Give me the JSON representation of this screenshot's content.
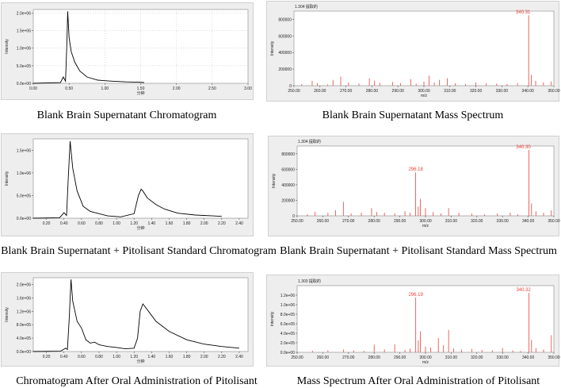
{
  "chart_data": [
    {
      "type": "line",
      "caption": "Blank Brain Supernatant Chromatogram",
      "xlabel": "分钟",
      "ylabel": "Intensity",
      "xlim": [
        0.0,
        3.0
      ],
      "ylim": [
        0,
        2100000
      ],
      "xticks": [
        0.0,
        0.5,
        1.0,
        1.5,
        2.0,
        2.5,
        3.0
      ],
      "xtick_labels": [
        "0.00",
        "0.50",
        "1.00",
        "1.50",
        "2.00",
        "2.50",
        "3.00"
      ],
      "yticks": [
        0,
        500000,
        1000000,
        1500000,
        2000000
      ],
      "ytick_labels": [
        "0.0e+00",
        "5.0e+05",
        "1.0e+06",
        "1.5e+06",
        "2.0e+06"
      ],
      "x": [
        0.0,
        0.38,
        0.42,
        0.45,
        0.47,
        0.48,
        0.5,
        0.53,
        0.58,
        0.65,
        0.75,
        0.9,
        1.1,
        1.3,
        1.5,
        1.55
      ],
      "y": [
        0,
        20000,
        180000,
        60000,
        1200000,
        2050000,
        1300000,
        900000,
        600000,
        350000,
        180000,
        90000,
        60000,
        40000,
        30000,
        20000
      ],
      "grid": "dotted"
    },
    {
      "type": "bar",
      "caption": "Blank Brain Supernatant Mass Spectrum",
      "header": "1.304 提取的",
      "xlabel": "m/z",
      "ylabel": "Intensity",
      "xlim": [
        250,
        350
      ],
      "ylim": [
        0,
        900000
      ],
      "xticks": [
        250,
        260,
        270,
        280,
        290,
        300,
        310,
        320,
        330,
        340,
        350
      ],
      "xtick_labels": [
        "250.00",
        "260.00",
        "270.00",
        "280.00",
        "290.00",
        "300.00",
        "310.00",
        "320.00",
        "330.00",
        "340.00",
        "350.00"
      ],
      "yticks": [
        0,
        200000,
        400000,
        600000,
        800000
      ],
      "ytick_labels": [
        "0",
        "200000",
        "400000",
        "600000",
        "800000"
      ],
      "x": [
        253,
        257,
        259,
        263,
        265,
        268,
        271,
        275,
        279,
        281,
        283,
        288,
        291,
        295,
        297,
        300,
        302,
        304,
        306,
        309,
        312,
        316,
        320,
        324,
        328,
        332,
        336,
        340.31,
        341.3,
        343,
        346,
        349
      ],
      "y": [
        20000,
        60000,
        30000,
        15000,
        70000,
        110000,
        40000,
        25000,
        90000,
        60000,
        35000,
        45000,
        30000,
        80000,
        25000,
        50000,
        120000,
        40000,
        70000,
        90000,
        30000,
        20000,
        40000,
        30000,
        25000,
        20000,
        30000,
        850000,
        130000,
        60000,
        40000,
        50000
      ],
      "peak_labels": [
        {
          "x": 340.31,
          "y": 850000,
          "text": "340.31"
        }
      ]
    },
    {
      "type": "line",
      "caption": "Blank Brain Supernatant + Pitolisant Standard Chromatogram",
      "xlabel": "分钟",
      "ylabel": "Intensity",
      "xlim": [
        0.05,
        2.5
      ],
      "ylim": [
        0,
        1750000
      ],
      "xticks": [
        0.2,
        0.4,
        0.6,
        0.8,
        1.0,
        1.2,
        1.4,
        1.6,
        1.8,
        2.0,
        2.2,
        2.4
      ],
      "xtick_labels": [
        "0.20",
        "0.40",
        "0.60",
        "0.80",
        "1.00",
        "1.20",
        "1.40",
        "1.60",
        "1.80",
        "2.00",
        "2.20",
        "2.40"
      ],
      "yticks": [
        0,
        500000,
        1000000,
        1500000
      ],
      "ytick_labels": [
        "0.0e+00",
        "5.0e+05",
        "1.0e+06",
        "1.5e+06"
      ],
      "x": [
        0.05,
        0.35,
        0.4,
        0.43,
        0.45,
        0.47,
        0.5,
        0.55,
        0.62,
        0.7,
        0.78,
        0.9,
        1.05,
        1.2,
        1.25,
        1.28,
        1.3,
        1.35,
        1.45,
        1.55,
        1.7,
        1.9,
        2.1,
        2.2
      ],
      "y": [
        0,
        10000,
        120000,
        60000,
        900000,
        1700000,
        1100000,
        600000,
        260000,
        150000,
        110000,
        50000,
        30000,
        100000,
        500000,
        640000,
        600000,
        450000,
        300000,
        200000,
        110000,
        70000,
        50000,
        40000
      ],
      "grid": "none"
    },
    {
      "type": "bar",
      "caption": "Blank Brain Supernatant + Pitolisant Standard Mass Spectrum",
      "header": "1.304 提取的",
      "xlabel": "m/z",
      "ylabel": "Intensity",
      "xlim": [
        250,
        350
      ],
      "ylim": [
        0,
        900000
      ],
      "xticks": [
        250,
        260,
        270,
        280,
        290,
        300,
        310,
        320,
        330,
        340,
        350
      ],
      "xtick_labels": [
        "250.00",
        "260.00",
        "270.00",
        "280.00",
        "290.00",
        "300.00",
        "310.00",
        "320.00",
        "330.00",
        "340.00",
        "350.00"
      ],
      "yticks": [
        0,
        200000,
        400000,
        600000,
        800000
      ],
      "ytick_labels": [
        "0",
        "200000",
        "400000",
        "600000",
        "800000"
      ],
      "x": [
        254,
        257,
        262,
        265,
        268,
        271,
        275,
        279,
        281,
        284,
        288,
        292,
        294,
        296.18,
        297.2,
        298,
        300,
        303,
        306,
        309,
        313,
        318,
        323,
        328,
        333,
        336,
        340.3,
        341.3,
        343,
        346,
        349
      ],
      "y": [
        20000,
        50000,
        40000,
        70000,
        180000,
        30000,
        40000,
        100000,
        50000,
        40000,
        30000,
        60000,
        40000,
        560000,
        120000,
        220000,
        100000,
        50000,
        30000,
        100000,
        40000,
        30000,
        20000,
        30000,
        40000,
        20000,
        850000,
        160000,
        60000,
        40000,
        70000
      ],
      "peak_labels": [
        {
          "x": 296.18,
          "y": 560000,
          "text": "296.18"
        },
        {
          "x": 340.3,
          "y": 850000,
          "text": "340.30"
        }
      ]
    },
    {
      "type": "line",
      "caption": "Chromatogram After Oral Administration of Pitolisant",
      "xlabel": "分钟",
      "ylabel": "Intensity",
      "xlim": [
        0.05,
        2.5
      ],
      "ylim": [
        0,
        2200000
      ],
      "xticks": [
        0.2,
        0.4,
        0.6,
        0.8,
        1.0,
        1.2,
        1.4,
        1.6,
        1.8,
        2.0,
        2.2,
        2.4
      ],
      "xtick_labels": [
        "0.20",
        "0.40",
        "0.60",
        "0.80",
        "1.00",
        "1.20",
        "1.40",
        "1.60",
        "1.80",
        "2.00",
        "2.20",
        "2.40"
      ],
      "yticks": [
        0,
        400000,
        800000,
        1200000,
        1600000,
        2000000
      ],
      "ytick_labels": [
        "0.0e+00",
        "4.0e+05",
        "8.0e+05",
        "1.2e+06",
        "1.6e+06",
        "2.0e+06"
      ],
      "x": [
        0.05,
        0.36,
        0.42,
        0.44,
        0.46,
        0.48,
        0.5,
        0.55,
        0.6,
        0.65,
        0.7,
        0.75,
        0.8,
        0.9,
        1.0,
        1.1,
        1.2,
        1.24,
        1.27,
        1.3,
        1.35,
        1.45,
        1.6,
        1.8,
        2.0,
        2.2,
        2.4
      ],
      "y": [
        0,
        10000,
        100000,
        60000,
        1000000,
        2150000,
        1500000,
        900000,
        700000,
        350000,
        250000,
        280000,
        200000,
        150000,
        120000,
        80000,
        100000,
        400000,
        1200000,
        1420000,
        1250000,
        900000,
        600000,
        350000,
        220000,
        150000,
        100000
      ],
      "grid": "none"
    },
    {
      "type": "bar",
      "caption": "Mass Spectrum After Oral Administration of Pitolisant",
      "header": "1.303 提取的",
      "xlabel": "m/z",
      "ylabel": "Intensity",
      "xlim": [
        250,
        350
      ],
      "ylim": [
        0,
        1400000
      ],
      "xticks": [
        250,
        260,
        270,
        280,
        290,
        300,
        310,
        320,
        330,
        340,
        350
      ],
      "xtick_labels": [
        "250.00",
        "260.00",
        "270.00",
        "280.00",
        "290.00",
        "300.00",
        "310.00",
        "320.00",
        "330.00",
        "340.00",
        "350.00"
      ],
      "yticks": [
        0,
        200000,
        400000,
        600000,
        800000,
        1000000,
        1200000
      ],
      "ytick_labels": [
        "0.0e+00",
        "2.0e+05",
        "4.0e+05",
        "6.0e+05",
        "8.0e+05",
        "1.0e+06",
        "1.2e+06"
      ],
      "x": [
        256,
        262,
        268,
        272,
        276,
        280,
        284,
        288,
        292,
        294,
        296.19,
        297.2,
        298,
        300,
        302,
        305,
        307,
        309,
        311,
        314,
        318,
        322,
        326,
        330,
        334,
        337,
        340.32,
        341.3,
        343,
        346,
        349
      ],
      "y": [
        30000,
        40000,
        60000,
        40000,
        30000,
        160000,
        60000,
        170000,
        50000,
        80000,
        1150000,
        250000,
        440000,
        120000,
        100000,
        300000,
        150000,
        470000,
        80000,
        60000,
        70000,
        50000,
        40000,
        90000,
        40000,
        30000,
        1250000,
        260000,
        90000,
        60000,
        360000
      ],
      "peak_labels": [
        {
          "x": 296.19,
          "y": 1150000,
          "text": "296.19"
        },
        {
          "x": 340.32,
          "y": 1250000,
          "text": "340.32"
        }
      ]
    }
  ],
  "colors": {
    "chromatogram_line": "#000000",
    "spectrum_bar": "#e8433a",
    "peak_label": "#e8433a",
    "panel_bg": "#eeeeee",
    "plot_bg": "#ffffff"
  }
}
